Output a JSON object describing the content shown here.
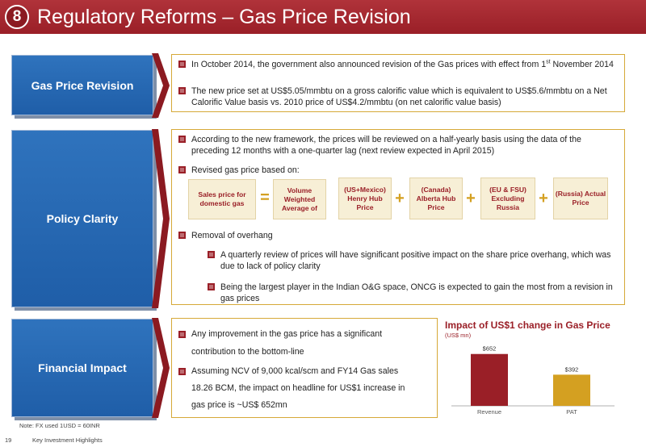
{
  "header": {
    "number": "8",
    "title": "Regulatory Reforms – Gas Price Revision"
  },
  "sections": {
    "gas_price_revision": {
      "label": "Gas Price Revision",
      "bullets": [
        {
          "pre": "In October 2014, the government also announced revision of the Gas prices with effect from 1",
          "sup": "st",
          "post": " November 2014"
        },
        {
          "text": "The new price set at US$5.05/mmbtu on a gross calorific value which is equivalent to US$5.6/mmbtu on a Net Calorific Value basis vs. 2010 price of US$4.2/mmbtu (on net calorific value basis)"
        }
      ]
    },
    "policy_clarity": {
      "label": "Policy Clarity",
      "bullet1": "According to the new framework, the prices will be reviewed on a half-yearly basis using the data of the preceding 12 months with a one-quarter lag (next review expected in April 2015)",
      "bullet2": "Revised gas price based on:",
      "formula": {
        "lhs": "Sales price for domestic gas",
        "eq": "=",
        "vwa": "Volume Weighted Average of",
        "terms": [
          "(US+Mexico) Henry Hub Price",
          "(Canada) Alberta Hub Price",
          "(EU & FSU) Excluding Russia",
          "(Russia) Actual Price"
        ],
        "plus": "+"
      },
      "bullet3": "Removal of overhang",
      "sub_bullets": [
        "A quarterly review of prices will have significant positive impact on the share price overhang, which was due to lack of policy clarity",
        "Being the largest player in the Indian O&G space, ONCG is expected to gain the most from a revision in gas prices"
      ]
    },
    "financial_impact": {
      "label": "Financial Impact",
      "bullet1": "Any improvement in the gas price has a significant contribution to the bottom-line",
      "bullet2": "Assuming NCV of 9,000 kcal/scm and FY14 Gas sales 18.26 BCM, the impact on headline for US$1 increase in gas price is ~US$ 652mn"
    }
  },
  "chart_data": {
    "type": "bar",
    "title": "Impact of US$1 change in Gas Price",
    "subtitle": "(US$ mn)",
    "categories": [
      "Revenue",
      "PAT"
    ],
    "values": [
      652,
      392
    ],
    "data_labels": [
      "$652",
      "$392"
    ],
    "colors": [
      "#9a1f27",
      "#d4a021"
    ],
    "ylim": [
      0,
      700
    ]
  },
  "note": "Note: FX used 1USD = 60INR",
  "footer": {
    "page": "19",
    "text": "Key Investment Highlights"
  },
  "colors": {
    "brand_red": "#9a1f27",
    "blue": "#2367b3",
    "gold": "#d4a021"
  }
}
